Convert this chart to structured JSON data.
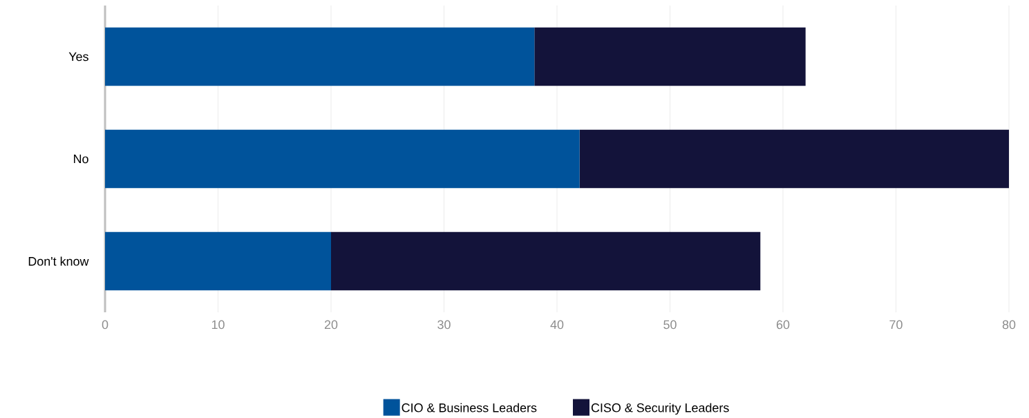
{
  "chart_data": {
    "type": "bar",
    "orientation": "horizontal",
    "stacked": true,
    "categories": [
      "Yes",
      "No",
      "Don't know"
    ],
    "series": [
      {
        "name": "CIO & Business Leaders",
        "color": "#00539b",
        "values": [
          38,
          42,
          20
        ]
      },
      {
        "name": "CISO & Security Leaders",
        "color": "#13133a",
        "values": [
          24,
          38,
          38
        ]
      }
    ],
    "xlim": [
      0,
      80
    ],
    "xticks": [
      0,
      10,
      20,
      30,
      40,
      50,
      60,
      70,
      80
    ],
    "grid": "x",
    "legend": "bottom"
  }
}
